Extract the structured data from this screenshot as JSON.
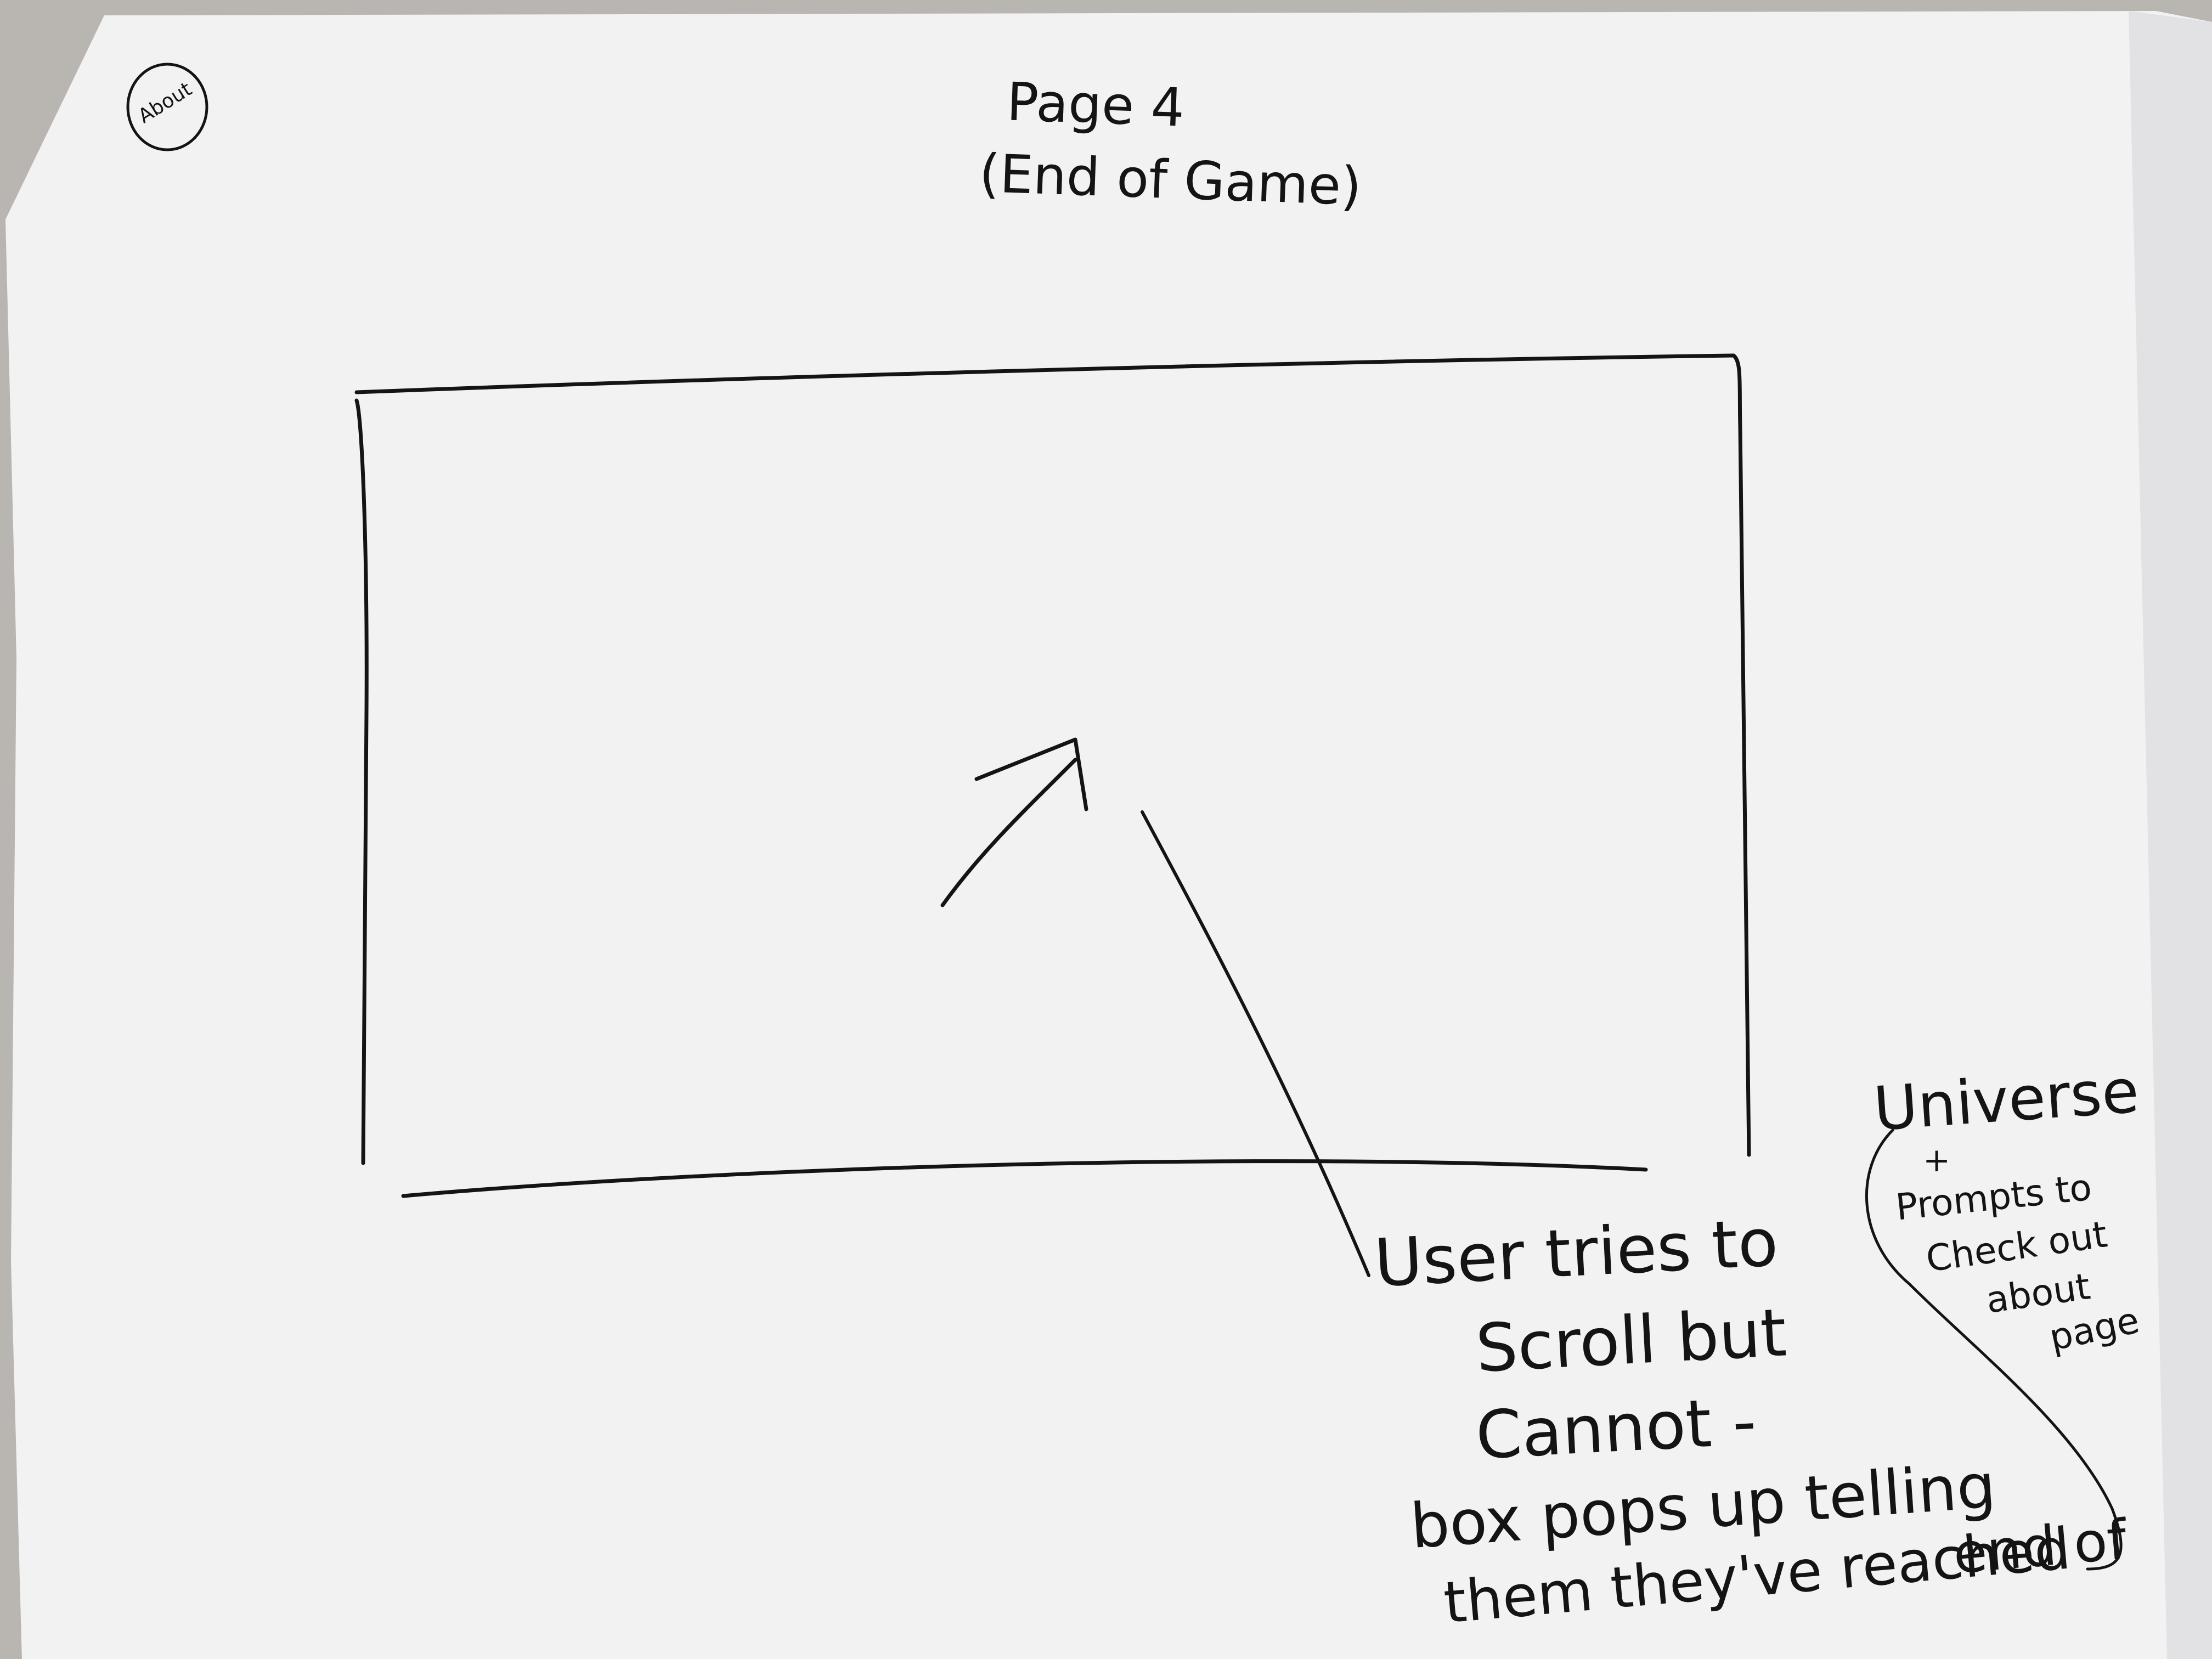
{
  "sketch": {
    "about_badge": "About",
    "title": {
      "line1": "Page 4",
      "line2": "(End of Game)"
    },
    "scroll_note": {
      "line1": "User tries to",
      "line2": "Scroll but",
      "line3": "Cannot -",
      "line4": "box pops up telling",
      "line5": "them they've reached",
      "line6": "end of"
    },
    "side_note": {
      "line1": "Universe",
      "line2": "+",
      "line3": "Prompts to",
      "line4": "Check out",
      "line5": "about",
      "line6": "page"
    }
  }
}
